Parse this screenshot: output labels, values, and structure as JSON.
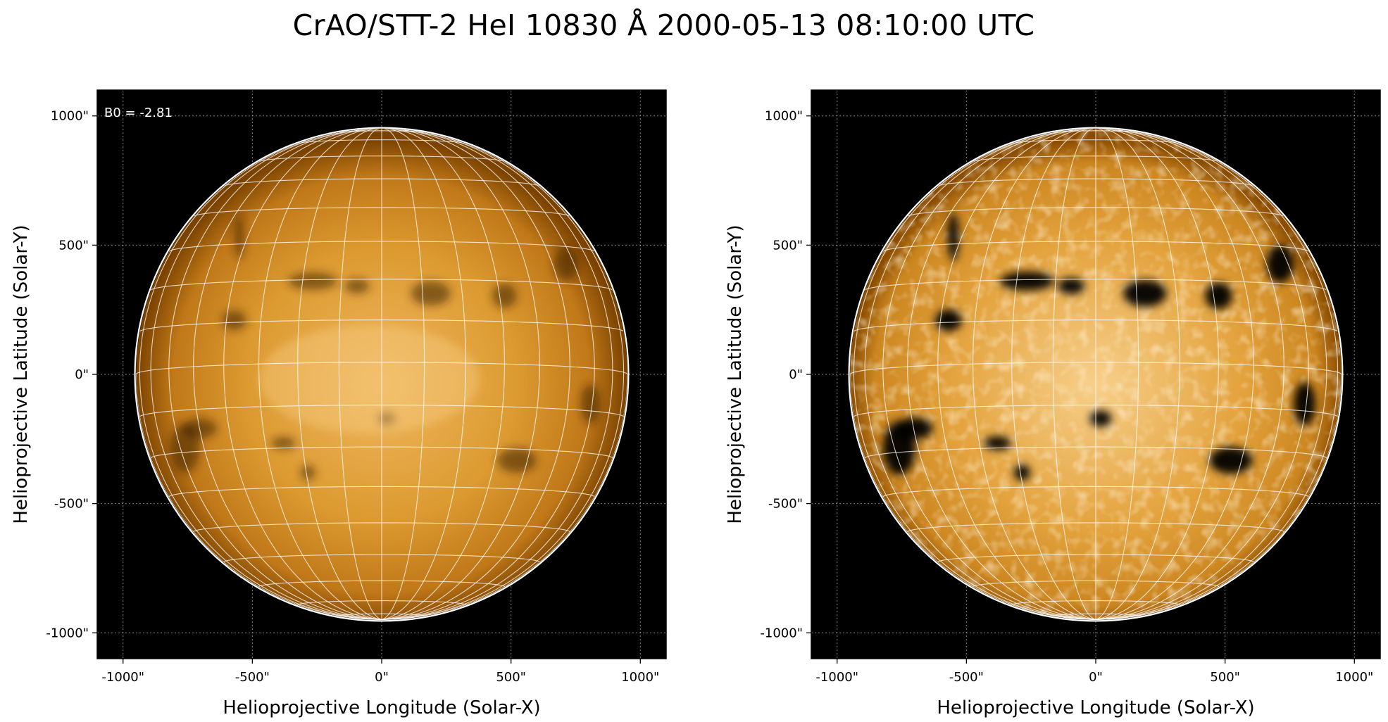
{
  "figure": {
    "title": "CrAO/STT-2 HeI 10830 Å 2000-05-13 08:10:00 UTC"
  },
  "panels": [
    {
      "id": "left",
      "annotation": "B0 = -2.81",
      "xlabel": "Helioprojective Longitude (Solar-X)",
      "ylabel": "Helioprojective Latitude (Solar-Y)",
      "xticks": [
        "-1000\"",
        "-500\"",
        "0\"",
        "500\"",
        "1000\""
      ],
      "yticks": [
        "1000\"",
        "500\"",
        "0\"",
        "-500\"",
        "-1000\""
      ],
      "contrast": "normal"
    },
    {
      "id": "right",
      "annotation": "",
      "xlabel": "Helioprojective Longitude (Solar-X)",
      "ylabel": "Helioprojective Latitude (Solar-Y)",
      "xticks": [
        "-1000\"",
        "-500\"",
        "0\"",
        "500\"",
        "1000\""
      ],
      "yticks": [
        "1000\"",
        "500\"",
        "0\"",
        "-500\"",
        "-1000\""
      ],
      "contrast": "enhanced"
    }
  ],
  "axes": {
    "xlim": [
      -1100,
      1100
    ],
    "ylim": [
      -1100,
      1100
    ],
    "tick_values": [
      -1000,
      -500,
      0,
      500,
      1000
    ],
    "solar_radius_arcsec": 950,
    "b0_deg": -2.81,
    "grid_step_deg": 10
  },
  "colors": {
    "background": "#000000",
    "disk_center": "#f2bd72",
    "disk_mid": "#d38d22",
    "disk_limb": "#7a4200",
    "limb_circle": "#ffffff",
    "grid": "#ffffff"
  }
}
